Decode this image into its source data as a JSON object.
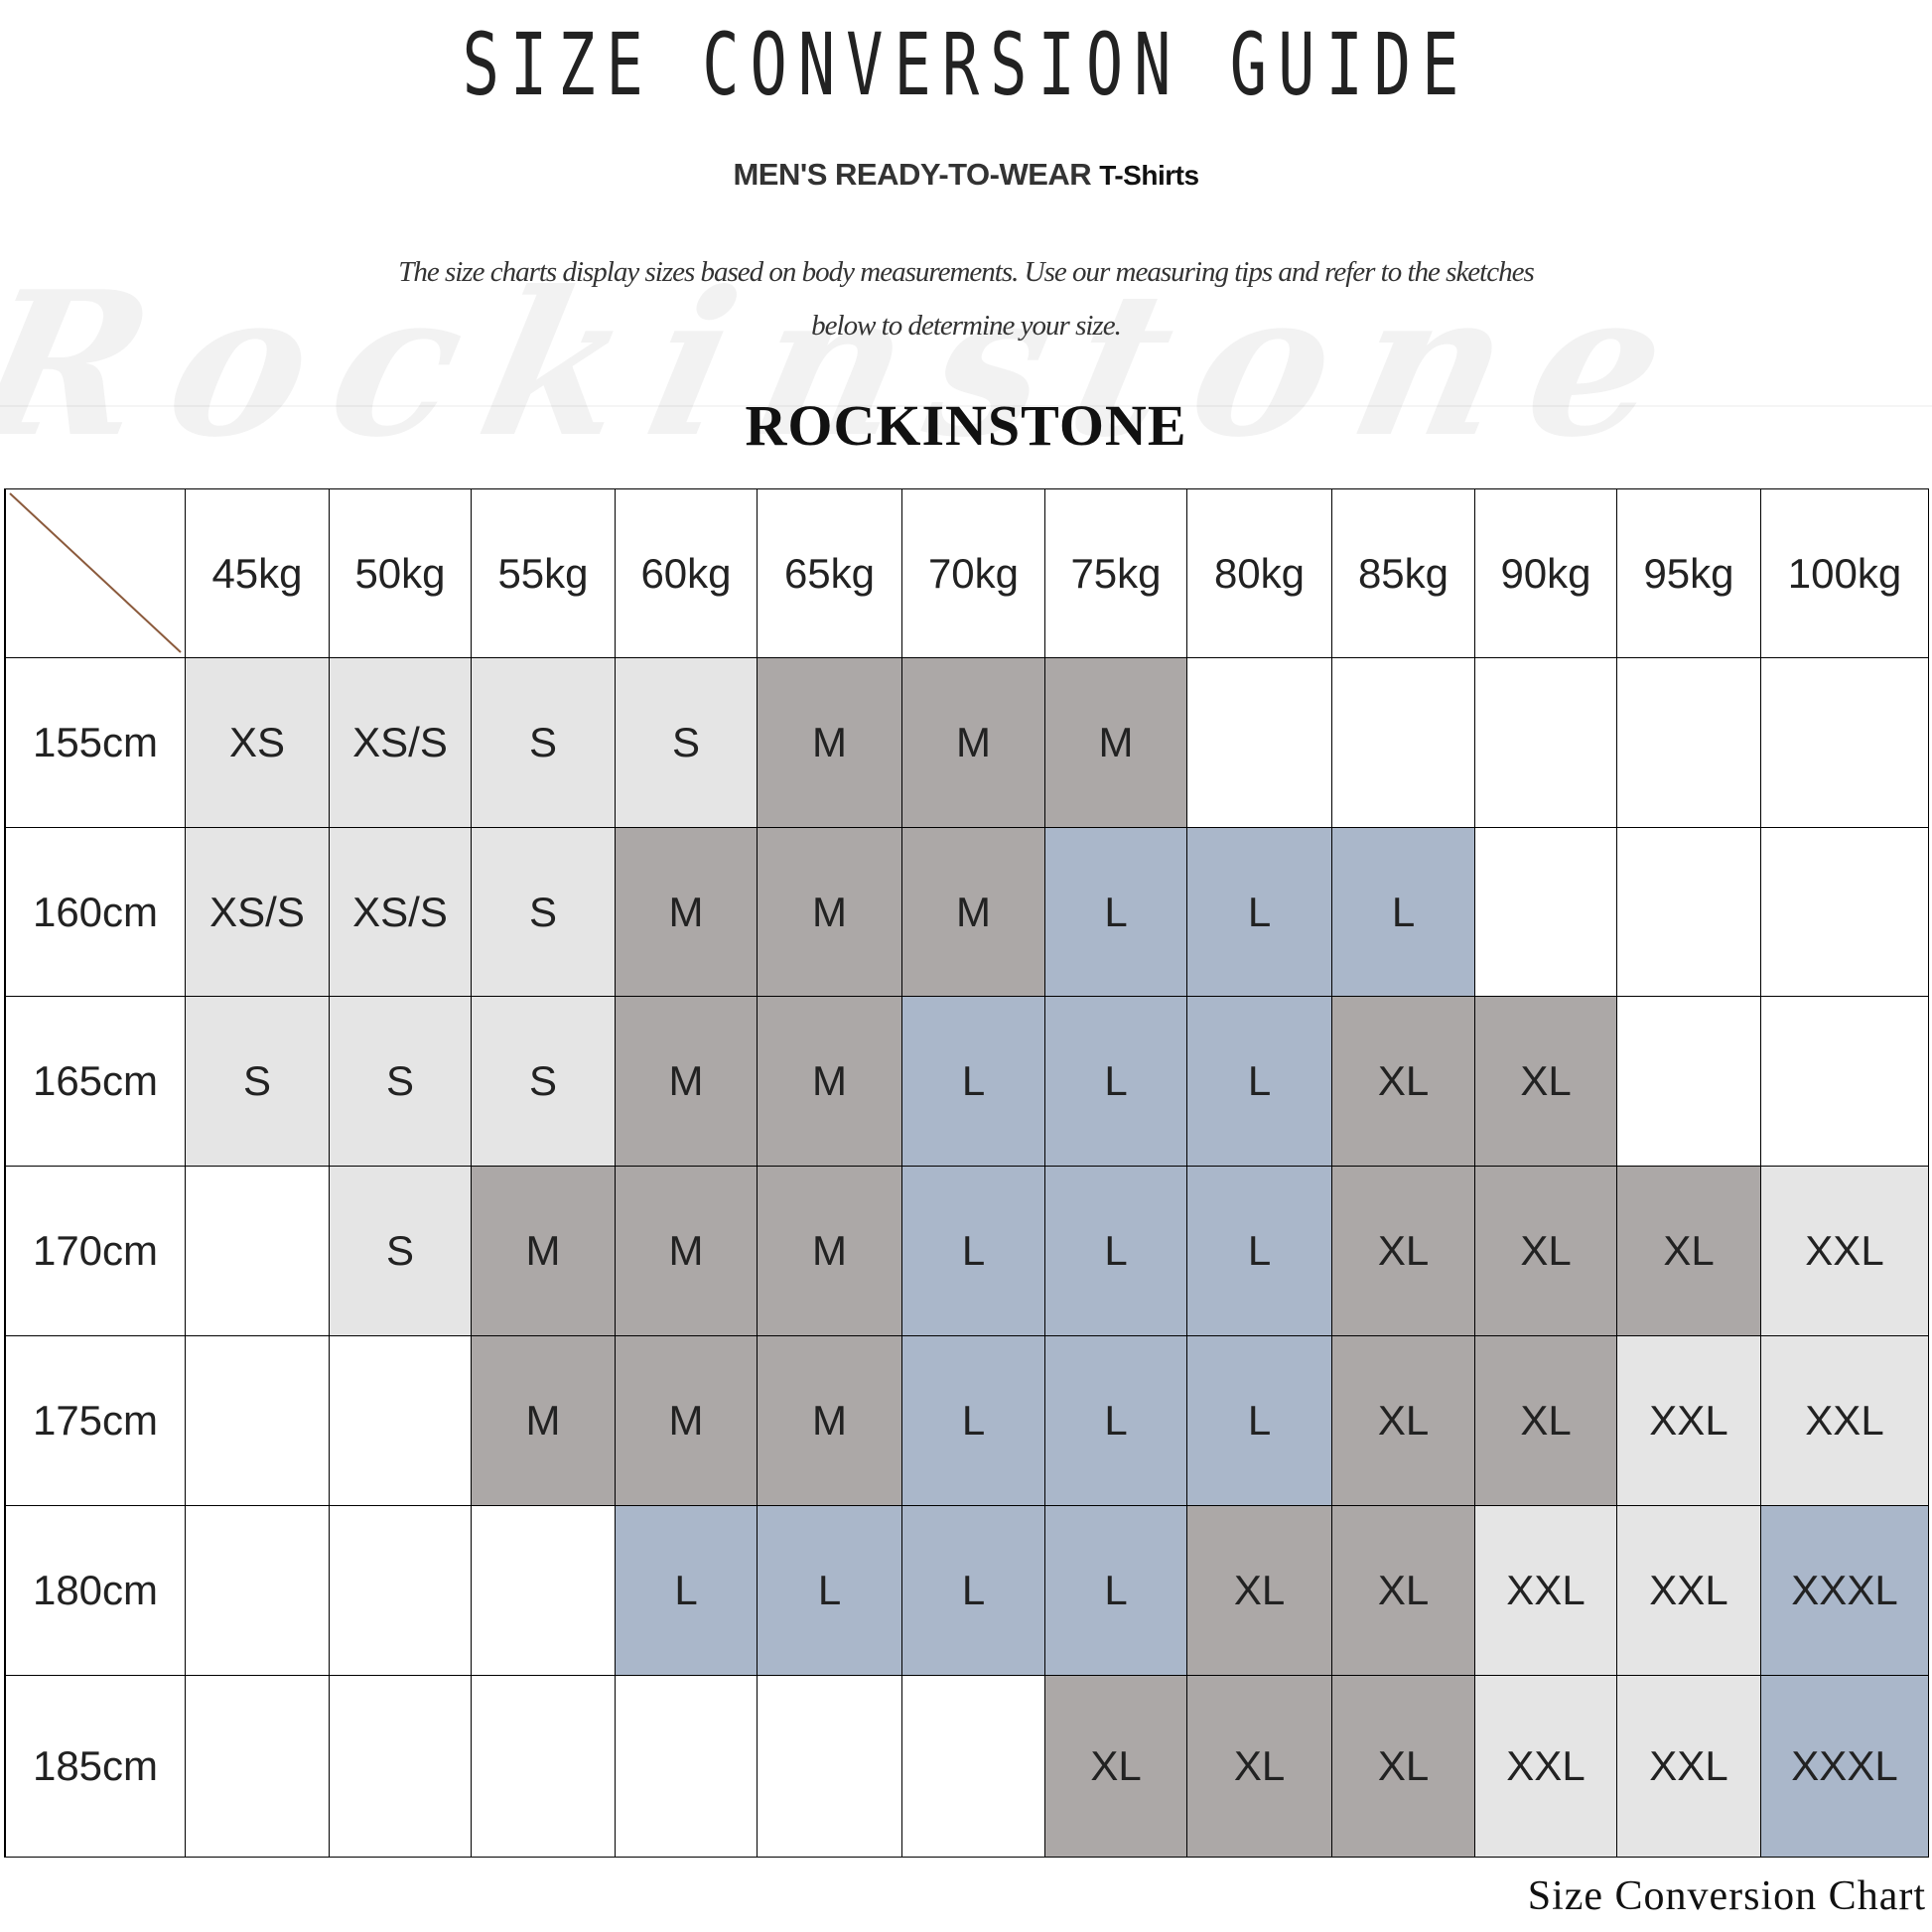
{
  "title": "SIZE CONVERSION GUIDE",
  "subtitle": {
    "main": "MEN'S READY-TO-WEAR",
    "product": "T-Shirts"
  },
  "description": {
    "line1": "The size charts display sizes based on body measurements. Use our measuring tips and refer to the sketches",
    "line2": "below to determine your size."
  },
  "brand": "ROCKINSTONE",
  "watermark": "Rockinstone",
  "footer": "Size Conversion Chart",
  "colors": {
    "light": "#e5e5e5",
    "dark": "#aca8a7",
    "blue": "#aab7ca",
    "diagonal": "#8b5a3c"
  },
  "size_colors": {
    "XS": "light",
    "XS/S": "light",
    "S": "light",
    "XXL": "light",
    "M": "dark",
    "XL": "dark",
    "L": "blue",
    "XXXL": "blue"
  },
  "table": {
    "weights": [
      "45kg",
      "50kg",
      "55kg",
      "60kg",
      "65kg",
      "70kg",
      "75kg",
      "80kg",
      "85kg",
      "90kg",
      "95kg",
      "100kg"
    ],
    "rows": [
      {
        "height": "155cm",
        "sizes": [
          "XS",
          "XS/S",
          "S",
          "S",
          "M",
          "M",
          "M",
          "",
          "",
          "",
          "",
          ""
        ]
      },
      {
        "height": "160cm",
        "sizes": [
          "XS/S",
          "XS/S",
          "S",
          "M",
          "M",
          "M",
          "L",
          "L",
          "L",
          "",
          "",
          ""
        ]
      },
      {
        "height": "165cm",
        "sizes": [
          "S",
          "S",
          "S",
          "M",
          "M",
          "L",
          "L",
          "L",
          "XL",
          "XL",
          "",
          ""
        ]
      },
      {
        "height": "170cm",
        "sizes": [
          "",
          "S",
          "M",
          "M",
          "M",
          "L",
          "L",
          "L",
          "XL",
          "XL",
          "XL",
          "XXL"
        ]
      },
      {
        "height": "175cm",
        "sizes": [
          "",
          "",
          "M",
          "M",
          "M",
          "L",
          "L",
          "L",
          "XL",
          "XL",
          "XXL",
          "XXL"
        ]
      },
      {
        "height": "180cm",
        "sizes": [
          "",
          "",
          "",
          "L",
          "L",
          "L",
          "L",
          "XL",
          "XL",
          "XXL",
          "XXL",
          "XXXL"
        ]
      },
      {
        "height": "185cm",
        "sizes": [
          "",
          "",
          "",
          "",
          "",
          "",
          "XL",
          "XL",
          "XL",
          "XXL",
          "XXL",
          "XXXL"
        ]
      }
    ]
  }
}
